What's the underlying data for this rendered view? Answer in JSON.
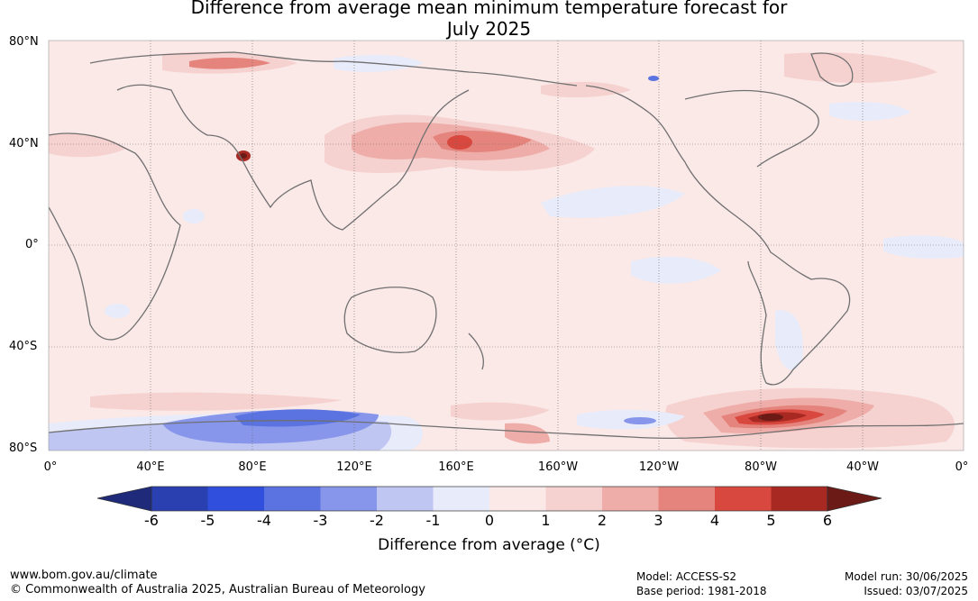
{
  "title": {
    "line1": "Difference from average mean minimum temperature forecast for",
    "line2": "July 2025"
  },
  "map": {
    "latitude_labels": [
      "80°N",
      "40°N",
      "0°",
      "40°S",
      "80°S"
    ],
    "longitude_labels": [
      "0°",
      "40°E",
      "80°E",
      "120°E",
      "160°E",
      "160°W",
      "120°W",
      "80°W",
      "40°W",
      "0°"
    ],
    "gridlines": true
  },
  "legend": {
    "title": "Difference from average (°C)",
    "ticks": [
      "-6",
      "-5",
      "-4",
      "-3",
      "-2",
      "-1",
      "0",
      "1",
      "2",
      "3",
      "4",
      "5",
      "6"
    ],
    "colors": [
      "#1f2a7a",
      "#2a3fb0",
      "#2f4fdc",
      "#5a73e0",
      "#8796ea",
      "#bfc6f2",
      "#e8ebfa",
      "#fbe9e8",
      "#f5d2d0",
      "#eeada8",
      "#e5837d",
      "#d9483e",
      "#a82822",
      "#6b1a15"
    ]
  },
  "footer": {
    "website": "www.bom.gov.au/climate",
    "copyright": "© Commonwealth of Australia 2025, Australian Bureau of Meteorology",
    "model": "Model: ACCESS-S2",
    "base_period": "Base period: 1981-2018",
    "model_run": "Model run: 30/06/2025",
    "issued": "Issued: 03/07/2025"
  }
}
